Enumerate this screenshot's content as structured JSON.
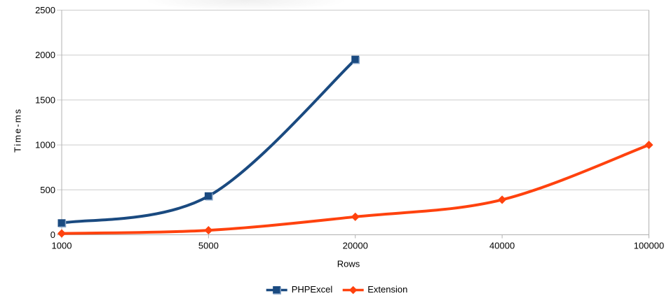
{
  "chart_data": {
    "type": "line",
    "line_style": "smooth",
    "xlabel": "Rows",
    "ylabel": "Time-ms",
    "categories": [
      "1000",
      "5000",
      "20000",
      "40000",
      "100000"
    ],
    "y_ticks": [
      "0",
      "500",
      "1000",
      "1500",
      "2000",
      "2500"
    ],
    "ylim": [
      0,
      2500
    ],
    "grid": "horizontal-only",
    "legend_position": "bottom-center",
    "series": [
      {
        "name": "PHPExcel",
        "color": "#1A4A80",
        "marker": "square",
        "values": [
          130,
          430,
          1950
        ]
      },
      {
        "name": "Extension",
        "color": "#FF420E",
        "marker": "diamond",
        "values": [
          15,
          50,
          200,
          390,
          1000
        ]
      }
    ],
    "colors": {
      "gridline": "#cccccc",
      "axis": "#b0b0b0",
      "text": "#000000",
      "marker_bevel": "#86a4c8"
    }
  }
}
